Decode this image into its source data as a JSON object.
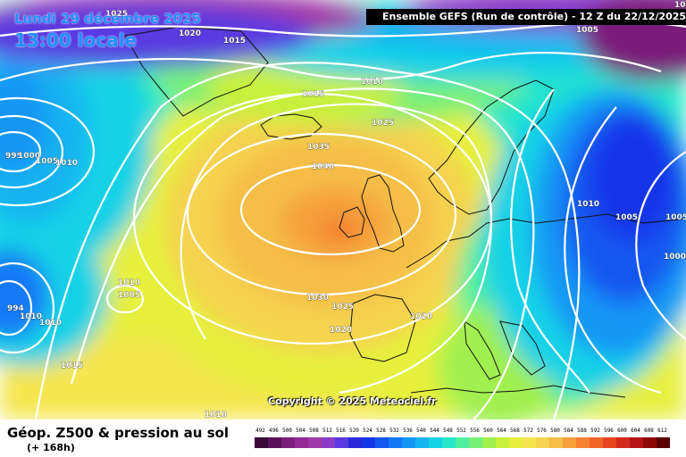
{
  "header": {
    "date": "Lundi 29 décembre 2025",
    "time": "13:00 locale",
    "run_label": "Ensemble GEFS  (Run de contrôle)  -  12 Z du 22/12/2025"
  },
  "copyright": "Copyright © 2025 Meteociel.fr",
  "legend": {
    "title": "Géop. Z500 & pression au sol",
    "subtitle": "(+ 168h)",
    "scale_values": [
      "492",
      "496",
      "500",
      "504",
      "508",
      "512",
      "516",
      "520",
      "524",
      "528",
      "532",
      "536",
      "540",
      "544",
      "548",
      "552",
      "556",
      "560",
      "564",
      "568",
      "572",
      "576",
      "580",
      "584",
      "588",
      "592",
      "596",
      "600",
      "604",
      "608",
      "612"
    ],
    "scale_colors": [
      "#3a0a3a",
      "#5a1457",
      "#7a1e7a",
      "#942a94",
      "#a03aa8",
      "#8a3cc8",
      "#5a3ae0",
      "#2a2ad8",
      "#1436e8",
      "#1456f0",
      "#1478f5",
      "#1496f5",
      "#14b4f0",
      "#14d2e6",
      "#28e6c8",
      "#50f0a0",
      "#78f078",
      "#a0f050",
      "#c8f03c",
      "#e6f03c",
      "#f5e650",
      "#f5d250",
      "#f5be46",
      "#f5a03c",
      "#f58232",
      "#f06428",
      "#e6461e",
      "#d2281e",
      "#b41414",
      "#8c0a0a",
      "#5a0000"
    ]
  },
  "isobar_labels": [
    {
      "text": "1025"
    },
    {
      "text": "1020"
    },
    {
      "text": "1015"
    },
    {
      "text": "1005"
    },
    {
      "text": "995"
    },
    {
      "text": "1000"
    },
    {
      "text": "1005"
    },
    {
      "text": "1010"
    },
    {
      "text": "1015"
    },
    {
      "text": "1010"
    },
    {
      "text": "1025"
    },
    {
      "text": "1035"
    },
    {
      "text": "1040"
    },
    {
      "text": "1010"
    },
    {
      "text": "1005"
    },
    {
      "text": "994"
    },
    {
      "text": "1010"
    },
    {
      "text": "1010"
    },
    {
      "text": "1030"
    },
    {
      "text": "1025"
    },
    {
      "text": "1020"
    },
    {
      "text": "1020"
    },
    {
      "text": "1015"
    },
    {
      "text": "1010"
    },
    {
      "text": "1010"
    },
    {
      "text": "1005"
    },
    {
      "text": "1005"
    },
    {
      "text": "1000"
    },
    {
      "text": "10"
    }
  ]
}
